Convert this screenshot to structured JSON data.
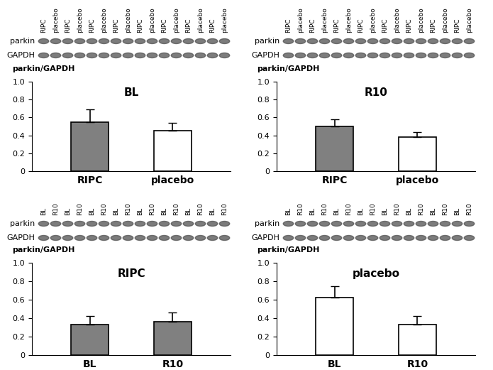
{
  "chart_data": [
    {
      "type": "bar",
      "title": "BL",
      "y_label": "parkin/GAPDH",
      "categories": [
        "RIPC",
        "placebo"
      ],
      "values": [
        0.55,
        0.45
      ],
      "errors": [
        0.14,
        0.09
      ],
      "colors": [
        "#808080",
        "#ffffff"
      ],
      "ylim": [
        0,
        1
      ],
      "yticks": [
        0,
        0.2,
        0.4,
        0.6,
        0.8,
        {
          "value": 1,
          "label": "1.0"
        }
      ],
      "blot": {
        "rows": [
          "parkin",
          "GAPDH"
        ],
        "lanes": [
          "RIPC",
          "placebo",
          "RIPC",
          "placebo",
          "RIPC",
          "placebo",
          "RIPC",
          "placebo",
          "RIPC",
          "placebo",
          "RIPC",
          "placebo",
          "RIPC",
          "placebo",
          "RIPC",
          "placebo"
        ]
      }
    },
    {
      "type": "bar",
      "title": "R10",
      "y_label": "parkin/GAPDH",
      "categories": [
        "RIPC",
        "placebo"
      ],
      "values": [
        0.5,
        0.38
      ],
      "errors": [
        0.08,
        0.06
      ],
      "colors": [
        "#808080",
        "#ffffff"
      ],
      "ylim": [
        0,
        1
      ],
      "yticks": [
        0,
        0.2,
        0.4,
        0.6,
        0.8,
        {
          "value": 1,
          "label": "1.0"
        }
      ],
      "blot": {
        "rows": [
          "parkin",
          "GAPDH"
        ],
        "lanes": [
          "RIPC",
          "placebo",
          "RIPC",
          "placebo",
          "RIPC",
          "placebo",
          "RIPC",
          "placebo",
          "RIPC",
          "placebo",
          "RIPC",
          "placebo",
          "RIPC",
          "placebo",
          "RIPC",
          "placebo"
        ]
      }
    },
    {
      "type": "bar",
      "title": "RIPC",
      "y_label": "parkin/GAPDH",
      "categories": [
        "BL",
        "R10"
      ],
      "values": [
        0.33,
        0.36
      ],
      "errors": [
        0.09,
        0.1
      ],
      "colors": [
        "#808080",
        "#808080"
      ],
      "ylim": [
        0,
        1
      ],
      "yticks": [
        0,
        0.2,
        0.4,
        0.6,
        0.8,
        {
          "value": 1,
          "label": "1.0"
        }
      ],
      "blot": {
        "rows": [
          "parkin",
          "GAPDH"
        ],
        "lanes": [
          "BL",
          "R10",
          "BL",
          "R10",
          "BL",
          "R10",
          "BL",
          "R10",
          "BL",
          "R10",
          "BL",
          "R10",
          "BL",
          "R10",
          "BL",
          "R10"
        ]
      }
    },
    {
      "type": "bar",
      "title": "placebo",
      "y_label": "parkin/GAPDH",
      "categories": [
        "BL",
        "R10"
      ],
      "values": [
        0.62,
        0.33
      ],
      "errors": [
        0.13,
        0.09
      ],
      "colors": [
        "#ffffff",
        "#ffffff"
      ],
      "ylim": [
        0,
        1
      ],
      "yticks": [
        0,
        0.2,
        0.4,
        0.6,
        0.8,
        {
          "value": 1,
          "label": "1.0"
        }
      ],
      "blot": {
        "rows": [
          "parkin",
          "GAPDH"
        ],
        "lanes": [
          "BL",
          "R10",
          "BL",
          "R10",
          "BL",
          "R10",
          "BL",
          "R10",
          "BL",
          "R10",
          "BL",
          "R10",
          "BL",
          "R10",
          "BL",
          "R10"
        ]
      }
    }
  ]
}
